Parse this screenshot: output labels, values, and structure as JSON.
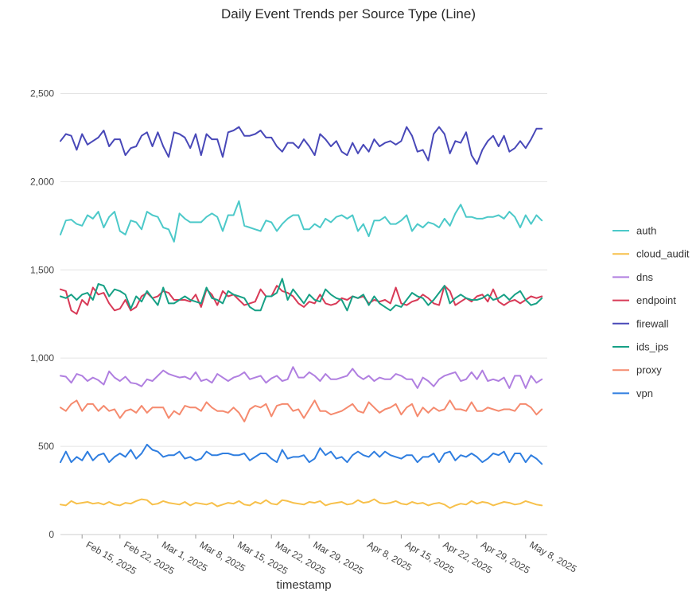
{
  "chart_data": {
    "type": "line",
    "title": "Daily Event Trends per Source Type (Line)",
    "xlabel": "timestamp",
    "ylabel": "",
    "x_start": "2025-02-11",
    "x_end": "2025-05-12",
    "xlim": [
      "2025-02-11",
      "2025-05-12"
    ],
    "ylim": [
      0,
      2750
    ],
    "y_ticks": [
      0,
      500,
      1000,
      1500,
      2000,
      2500
    ],
    "y_tick_labels": [
      "0",
      "500",
      "1,000",
      "1,500",
      "2,000",
      "2,500"
    ],
    "x_ticks": [
      "2025-02-15",
      "2025-02-22",
      "2025-03-01",
      "2025-03-08",
      "2025-03-15",
      "2025-03-22",
      "2025-03-29",
      "2025-04-08",
      "2025-04-15",
      "2025-04-22",
      "2025-04-29",
      "2025-05-08"
    ],
    "x_tick_labels": [
      "Feb 15, 2025",
      "Feb 22, 2025",
      "Mar 1, 2025",
      "Mar 8, 2025",
      "Mar 15, 2025",
      "Mar 22, 2025",
      "Mar 29, 2025",
      "Apr 8, 2025",
      "Apr 15, 2025",
      "Apr 22, 2025",
      "Apr 29, 2025",
      "May 8, 2025"
    ],
    "grid": "horizontal",
    "legend_position": "right",
    "series": [
      {
        "name": "auth",
        "color": "#4cc9c9",
        "values": [
          1700,
          1780,
          1785,
          1760,
          1750,
          1810,
          1790,
          1830,
          1740,
          1800,
          1830,
          1720,
          1700,
          1780,
          1770,
          1730,
          1830,
          1810,
          1800,
          1740,
          1730,
          1660,
          1820,
          1790,
          1770,
          1770,
          1770,
          1800,
          1820,
          1800,
          1720,
          1810,
          1810,
          1890,
          1750,
          1740,
          1730,
          1720,
          1780,
          1770,
          1720,
          1760,
          1790,
          1810,
          1810,
          1730,
          1730,
          1760,
          1740,
          1790,
          1770,
          1800,
          1810,
          1790,
          1810,
          1720,
          1760,
          1690,
          1780,
          1780,
          1800,
          1760,
          1760,
          1780,
          1810,
          1720,
          1760,
          1740,
          1770,
          1760,
          1740,
          1790,
          1750,
          1820,
          1870,
          1800,
          1800,
          1790,
          1790,
          1800,
          1800,
          1810,
          1790,
          1830,
          1800,
          1740,
          1810,
          1760,
          1810,
          1780
        ]
      },
      {
        "name": "cloud_audit",
        "color": "#f7c04a",
        "values": [
          170,
          165,
          190,
          175,
          180,
          185,
          175,
          180,
          170,
          185,
          170,
          165,
          180,
          175,
          190,
          200,
          195,
          170,
          175,
          190,
          180,
          175,
          170,
          185,
          165,
          180,
          175,
          170,
          180,
          160,
          170,
          180,
          175,
          190,
          170,
          165,
          185,
          175,
          195,
          175,
          170,
          195,
          190,
          180,
          175,
          170,
          185,
          180,
          190,
          165,
          175,
          180,
          185,
          170,
          175,
          195,
          180,
          185,
          200,
          180,
          175,
          180,
          190,
          175,
          170,
          185,
          175,
          180,
          165,
          175,
          180,
          170,
          150,
          165,
          175,
          170,
          190,
          175,
          185,
          180,
          165,
          175,
          185,
          180,
          170,
          175,
          190,
          180,
          170,
          165
        ]
      },
      {
        "name": "dns",
        "color": "#b07fe0",
        "values": [
          900,
          895,
          860,
          910,
          900,
          870,
          890,
          875,
          850,
          925,
          890,
          870,
          895,
          860,
          855,
          840,
          880,
          870,
          900,
          930,
          910,
          900,
          890,
          895,
          880,
          920,
          870,
          880,
          860,
          910,
          890,
          870,
          890,
          900,
          920,
          880,
          890,
          900,
          860,
          885,
          900,
          870,
          880,
          950,
          890,
          890,
          920,
          900,
          870,
          910,
          880,
          880,
          890,
          900,
          940,
          900,
          880,
          900,
          870,
          890,
          880,
          880,
          910,
          900,
          880,
          880,
          830,
          890,
          870,
          840,
          880,
          900,
          910,
          920,
          870,
          880,
          920,
          880,
          930,
          870,
          880,
          870,
          890,
          830,
          900,
          900,
          830,
          900,
          860,
          880
        ]
      },
      {
        "name": "endpoint",
        "color": "#d83a57",
        "values": [
          1390,
          1380,
          1270,
          1250,
          1330,
          1300,
          1400,
          1360,
          1370,
          1310,
          1270,
          1280,
          1330,
          1270,
          1290,
          1350,
          1370,
          1340,
          1350,
          1380,
          1370,
          1330,
          1330,
          1330,
          1320,
          1360,
          1290,
          1390,
          1360,
          1300,
          1380,
          1350,
          1360,
          1330,
          1300,
          1310,
          1320,
          1390,
          1350,
          1350,
          1410,
          1380,
          1370,
          1350,
          1310,
          1290,
          1320,
          1310,
          1360,
          1310,
          1300,
          1310,
          1340,
          1330,
          1350,
          1340,
          1350,
          1310,
          1330,
          1320,
          1330,
          1310,
          1400,
          1310,
          1300,
          1320,
          1330,
          1360,
          1340,
          1310,
          1300,
          1410,
          1380,
          1300,
          1320,
          1340,
          1320,
          1350,
          1360,
          1320,
          1390,
          1320,
          1300,
          1320,
          1330,
          1310,
          1330,
          1350,
          1340,
          1350
        ]
      },
      {
        "name": "firewall",
        "color": "#4848b8",
        "values": [
          2230,
          2270,
          2260,
          2180,
          2270,
          2210,
          2230,
          2250,
          2290,
          2200,
          2240,
          2240,
          2150,
          2190,
          2200,
          2260,
          2280,
          2200,
          2280,
          2200,
          2140,
          2280,
          2270,
          2250,
          2190,
          2270,
          2150,
          2270,
          2240,
          2240,
          2140,
          2280,
          2290,
          2310,
          2260,
          2260,
          2270,
          2290,
          2250,
          2250,
          2200,
          2170,
          2220,
          2220,
          2190,
          2240,
          2200,
          2150,
          2270,
          2240,
          2200,
          2230,
          2170,
          2150,
          2220,
          2160,
          2210,
          2170,
          2240,
          2200,
          2220,
          2230,
          2210,
          2230,
          2310,
          2260,
          2170,
          2180,
          2120,
          2270,
          2310,
          2270,
          2160,
          2230,
          2220,
          2280,
          2150,
          2100,
          2180,
          2230,
          2260,
          2200,
          2260,
          2170,
          2190,
          2230,
          2190,
          2240,
          2300,
          2300
        ]
      },
      {
        "name": "ids_ips",
        "color": "#16a085",
        "values": [
          1350,
          1340,
          1360,
          1330,
          1360,
          1370,
          1330,
          1420,
          1410,
          1350,
          1390,
          1380,
          1360,
          1280,
          1350,
          1320,
          1380,
          1340,
          1300,
          1400,
          1310,
          1310,
          1330,
          1350,
          1330,
          1320,
          1310,
          1400,
          1340,
          1330,
          1310,
          1380,
          1360,
          1350,
          1340,
          1290,
          1270,
          1270,
          1350,
          1350,
          1370,
          1450,
          1330,
          1390,
          1350,
          1310,
          1360,
          1330,
          1320,
          1390,
          1360,
          1340,
          1330,
          1270,
          1350,
          1340,
          1360,
          1300,
          1350,
          1310,
          1290,
          1270,
          1300,
          1290,
          1330,
          1370,
          1350,
          1340,
          1300,
          1330,
          1370,
          1410,
          1310,
          1340,
          1360,
          1340,
          1330,
          1330,
          1340,
          1360,
          1330,
          1340,
          1360,
          1330,
          1360,
          1380,
          1330,
          1300,
          1310,
          1340
        ]
      },
      {
        "name": "proxy",
        "color": "#f58a6e",
        "values": [
          720,
          700,
          740,
          760,
          700,
          740,
          740,
          700,
          730,
          700,
          710,
          660,
          700,
          710,
          690,
          730,
          690,
          720,
          720,
          720,
          660,
          700,
          680,
          730,
          720,
          720,
          700,
          750,
          720,
          700,
          700,
          690,
          720,
          690,
          640,
          710,
          730,
          720,
          740,
          670,
          730,
          740,
          740,
          700,
          710,
          660,
          710,
          760,
          700,
          700,
          680,
          690,
          700,
          720,
          740,
          700,
          690,
          750,
          720,
          690,
          710,
          720,
          740,
          680,
          720,
          740,
          670,
          720,
          690,
          720,
          700,
          710,
          760,
          710,
          710,
          700,
          750,
          700,
          700,
          720,
          710,
          700,
          710,
          710,
          700,
          740,
          740,
          720,
          680,
          710
        ]
      },
      {
        "name": "vpn",
        "color": "#2f7ee0",
        "values": [
          410,
          470,
          410,
          440,
          420,
          470,
          420,
          450,
          460,
          410,
          440,
          460,
          440,
          480,
          430,
          460,
          510,
          480,
          470,
          440,
          450,
          450,
          470,
          430,
          440,
          420,
          430,
          470,
          450,
          450,
          460,
          460,
          450,
          450,
          460,
          420,
          440,
          460,
          460,
          430,
          410,
          480,
          430,
          440,
          440,
          450,
          410,
          430,
          490,
          450,
          470,
          430,
          440,
          410,
          450,
          470,
          450,
          440,
          470,
          440,
          470,
          450,
          440,
          430,
          450,
          450,
          410,
          440,
          440,
          460,
          410,
          460,
          470,
          420,
          450,
          440,
          460,
          440,
          410,
          430,
          460,
          450,
          470,
          410,
          460,
          460,
          410,
          450,
          430,
          400
        ]
      }
    ]
  }
}
